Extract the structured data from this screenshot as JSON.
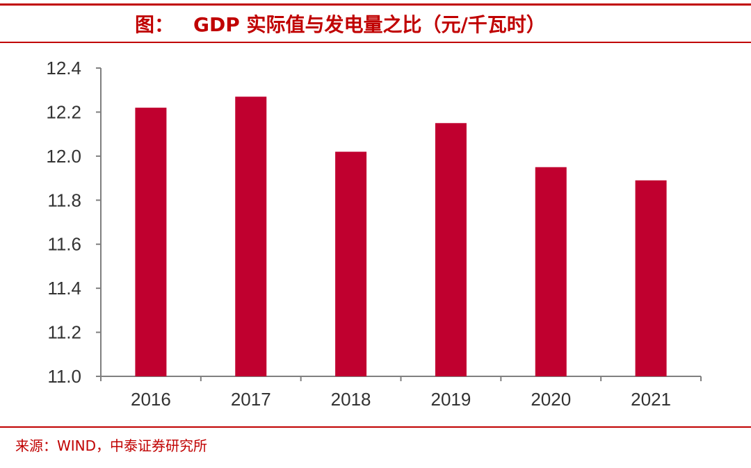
{
  "header": {
    "prefix": "图：",
    "title": "GDP 实际值与发电量之比（元/千瓦时）"
  },
  "footer": {
    "source": "来源：WIND，中泰证券研究所"
  },
  "colors": {
    "accent": "#c00000",
    "bar": "#c0002f",
    "axis": "#7f7f7f"
  },
  "chart_data": {
    "type": "bar",
    "title": "GDP 实际值与发电量之比（元/千瓦时）",
    "categories": [
      "2016",
      "2017",
      "2018",
      "2019",
      "2020",
      "2021"
    ],
    "values": [
      12.22,
      12.27,
      12.02,
      12.15,
      11.95,
      11.89
    ],
    "ylim": [
      11.0,
      12.4
    ],
    "yticks": [
      "11.0",
      "11.2",
      "11.4",
      "11.6",
      "11.8",
      "12.0",
      "12.2",
      "12.4"
    ],
    "grid": false,
    "legend": "none"
  }
}
